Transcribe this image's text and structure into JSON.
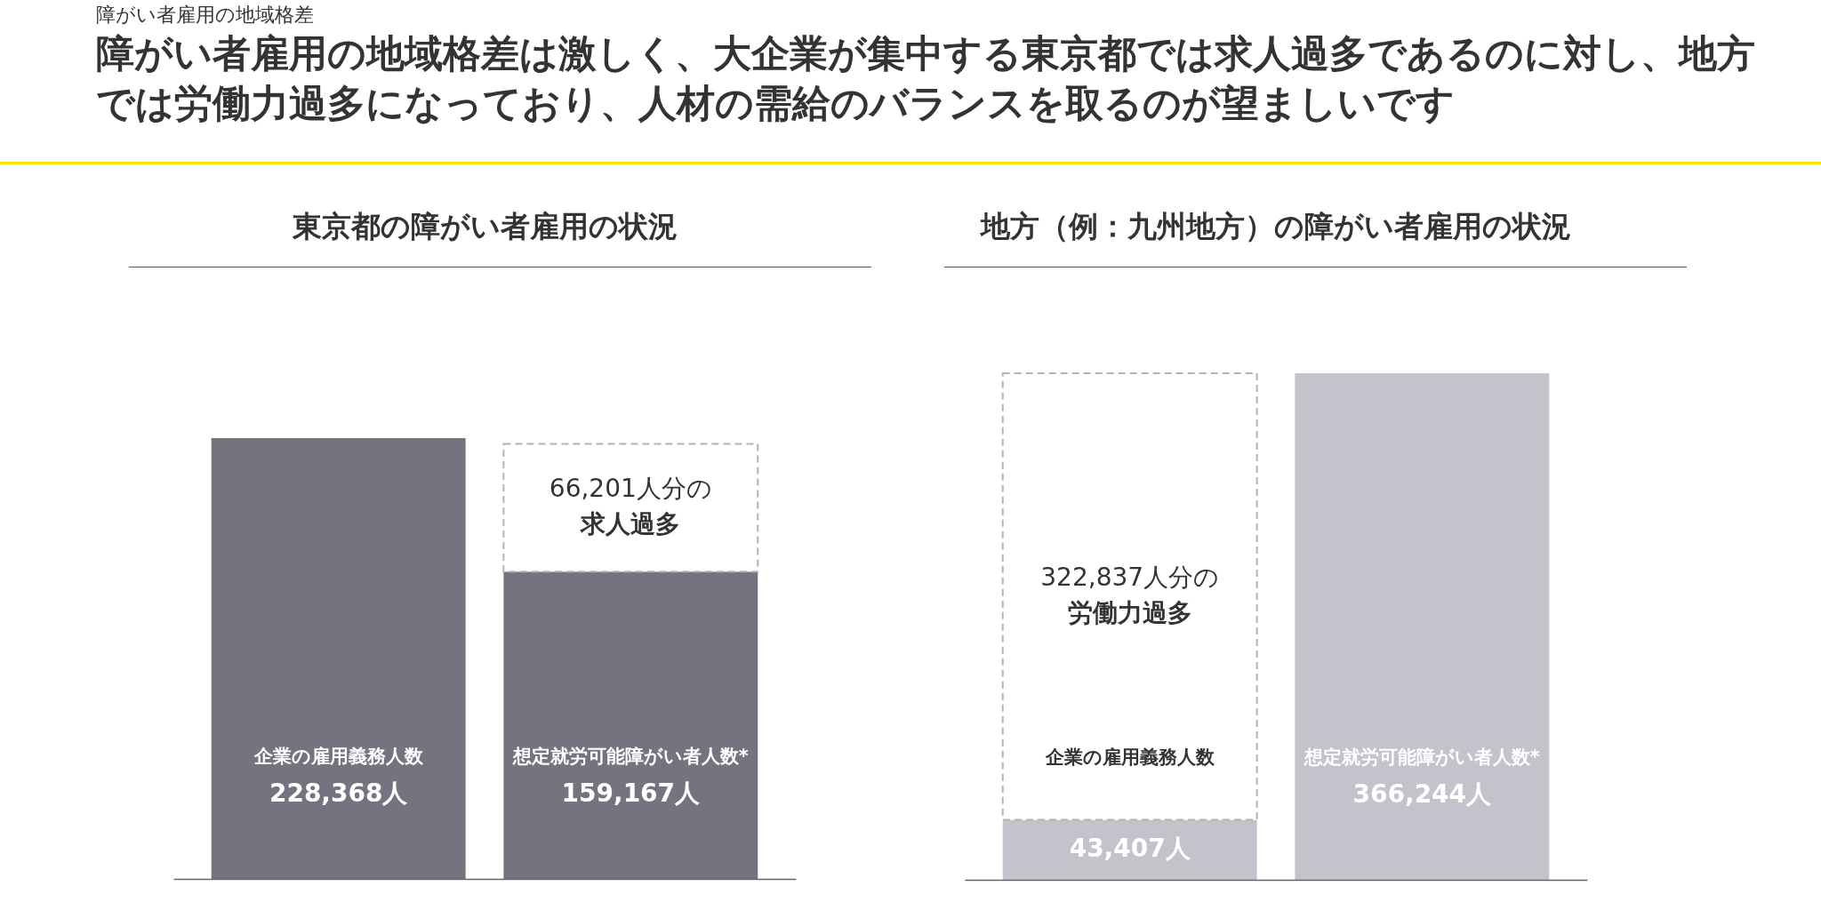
{
  "chart_data": [
    {
      "type": "bar",
      "title": "東京都の障がい者雇用の状況",
      "categories": [
        "企業の雇用義務人数",
        "想定就労可能障がい者人数*"
      ],
      "stacked": true,
      "tick_labels": false,
      "series": [
        {
          "color": "#74737f",
          "values": [
            228368,
            159167
          ],
          "value_labels": [
            "228,368人",
            "159,167人"
          ]
        },
        {
          "color": "#ffffff",
          "line_style": "dashed",
          "values": [
            null,
            66201
          ],
          "value_labels": [
            null,
            "66,201人分の"
          ]
        }
      ],
      "annotations": [
        "障がい者雇用の地域格差",
        "障がい者雇用の地域格差は激しく、大企業が集中する東京都では求人過多であるのに対し、地方では労働力過多になっており、人材の需給のバランスを取るのが望ましいです",
        "求人過多"
      ]
    },
    {
      "type": "bar",
      "title": "地方（例：九州地方）の障がい者雇用の状況",
      "categories": [
        "企業の雇用義務人数",
        "想定就労可能障がい者人数*"
      ],
      "stacked": true,
      "tick_labels": false,
      "series": [
        {
          "color": "#c4c3cc",
          "values": [
            43407,
            366244
          ],
          "value_labels": [
            "43,407人",
            "366,244人"
          ]
        },
        {
          "color": "#ffffff",
          "line_style": "dashed",
          "values": [
            322837,
            null
          ],
          "value_labels": [
            "322,837人分の",
            null
          ]
        }
      ],
      "annotations": [
        "労働力過多"
      ]
    }
  ]
}
